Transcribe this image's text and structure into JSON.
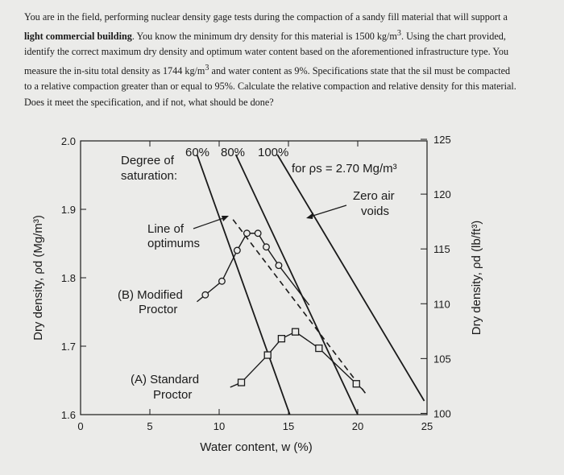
{
  "problem": {
    "part1": "You are in the field, performing nuclear density gage tests during the compaction of a sandy fill material that will support a ",
    "bold_phrase": "light commercial building",
    "part2": ". You know the minimum dry density for this material is 1500 kg/m",
    "sup1": "3",
    "part3": ". Using the chart provided, identify the correct maximum dry density and optimum water content based on the aforementioned infrastructure type. You measure the in-situ total density as 1744 kg/m",
    "sup2": "3",
    "part4": " and water content as 9%. Specifications state that the s",
    "part5": "il must be compacted to a relative compaction greater than or equal to 95%. Calculate the relative compaction and relative density for this material. Does it meet the specification, and if not, what should be done?"
  },
  "chart_data": {
    "type": "line",
    "xlabel": "Water content, w (%)",
    "ylabel_left": "Dry density, ρd (Mg/m³)",
    "ylabel_right": "Dry density, ρd (lb/ft³)",
    "xlim": [
      0,
      25
    ],
    "ylim": [
      1.6,
      2.0
    ],
    "x_ticks": [
      "0",
      "5",
      "10",
      "15",
      "20",
      "25"
    ],
    "y_ticks_left": [
      "1.6",
      "1.7",
      "1.8",
      "1.9",
      "2.0"
    ],
    "y_ticks_right": [
      "100",
      "105",
      "110",
      "115",
      "120",
      "125"
    ],
    "annotations": {
      "degree_line1": "Degree of",
      "degree_line2": "saturation:",
      "s60": "60%",
      "s80": "80%",
      "s100": "100%",
      "for_ps": "for ρs = 2.70 Mg/m³",
      "zav_line1": "Zero air",
      "zav_line2": "voids",
      "opt_line1": "Line of",
      "opt_line2": "optimums",
      "mod_line1": "(B) Modified",
      "mod_line2": "Proctor",
      "std_line1": "(A) Standard",
      "std_line2": "Proctor"
    },
    "saturation_lines": [
      {
        "name": "60%",
        "points": [
          [
            8.4,
            1.98
          ],
          [
            15.1,
            1.6
          ]
        ]
      },
      {
        "name": "80%",
        "points": [
          [
            11.2,
            1.98
          ],
          [
            20.0,
            1.6
          ]
        ]
      },
      {
        "name": "100%",
        "points": [
          [
            14.2,
            1.98
          ],
          [
            24.8,
            1.62
          ]
        ]
      }
    ],
    "series": [
      {
        "name": "(B) Modified Proctor",
        "marker": "circle",
        "x": [
          9.0,
          10.2,
          11.3,
          12.0,
          12.8,
          13.4,
          14.3
        ],
        "y": [
          1.775,
          1.795,
          1.84,
          1.865,
          1.865,
          1.845,
          1.818
        ]
      },
      {
        "name": "(A) Standard Proctor",
        "marker": "square",
        "x": [
          11.6,
          13.5,
          14.5,
          15.5,
          17.2,
          19.9
        ],
        "y": [
          1.647,
          1.687,
          1.711,
          1.721,
          1.697,
          1.645
        ]
      }
    ],
    "series_extensions": [
      {
        "name": "(B) Modified Proctor",
        "from": [
          9.0,
          1.775
        ],
        "to": [
          8.4,
          1.765
        ],
        "style": "solid"
      },
      {
        "name": "(B) Modified Proctor",
        "from": [
          14.3,
          1.818
        ],
        "to": [
          16.5,
          1.76
        ],
        "style": "solid"
      },
      {
        "name": "(A) Standard Proctor",
        "from": [
          11.6,
          1.647
        ],
        "to": [
          10.8,
          1.64
        ],
        "style": "solid"
      },
      {
        "name": "(A) Standard Proctor",
        "from": [
          19.9,
          1.645
        ],
        "to": [
          20.4,
          1.636
        ],
        "style": "solid"
      }
    ],
    "line_of_optimums": {
      "from": [
        11.0,
        1.885
      ],
      "to": [
        20.6,
        1.63
      ],
      "style": "dashed"
    },
    "grid": false
  }
}
